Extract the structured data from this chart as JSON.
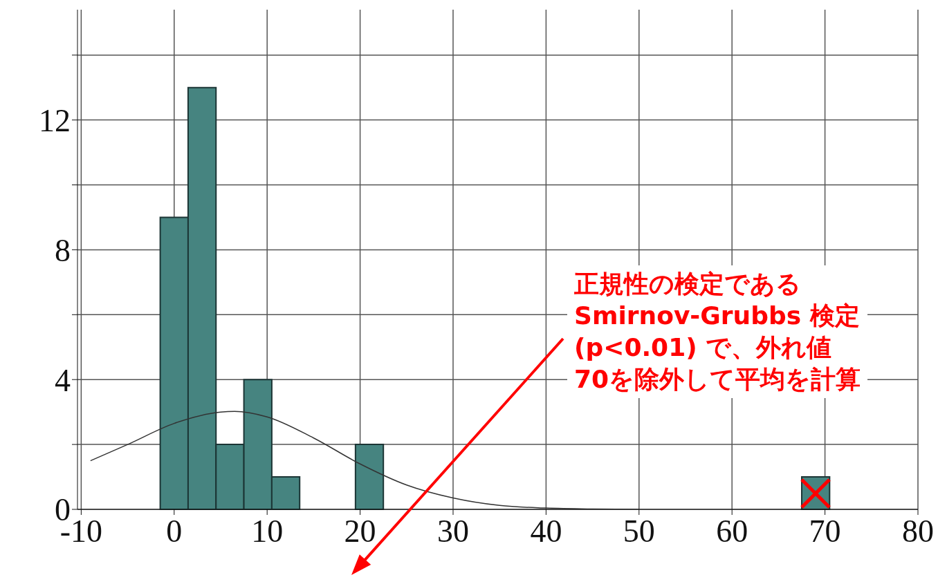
{
  "chart_data": {
    "type": "histogram",
    "bins": [
      -1.5,
      1.5,
      4.5,
      7.5,
      10.5,
      13.5,
      16.5,
      19.5,
      22.5,
      25.5,
      28.5,
      31.5,
      34.5,
      37.5,
      40.5,
      43.5,
      46.5,
      49.5,
      52.5,
      55.5,
      58.5,
      61.5,
      64.5,
      67.5,
      70.5
    ],
    "values": [
      9,
      13,
      2,
      4,
      1,
      0,
      0,
      2,
      0,
      0,
      0,
      0,
      0,
      0,
      0,
      0,
      0,
      0,
      0,
      0,
      0,
      0,
      0,
      1
    ],
    "color": "#468480",
    "series": [
      {
        "type": "line",
        "color": "#333333",
        "x": [
          -9,
          -5,
          0,
          5,
          6.5,
          10,
          15,
          20,
          25,
          30,
          35,
          40,
          45,
          50
        ],
        "values": [
          1.5,
          2.0,
          2.65,
          3.0,
          3.02,
          2.85,
          2.2,
          1.4,
          0.75,
          0.35,
          0.12,
          0.04,
          0.01,
          0
        ]
      }
    ],
    "xlim": [
      -10.4,
      80
    ],
    "xticks": [
      -10,
      0,
      10,
      20,
      30,
      40,
      50,
      60,
      70,
      80
    ],
    "ylim": [
      0,
      15.4
    ],
    "yticks": [
      0,
      {
        "value": 2,
        "label": null
      },
      4,
      {
        "value": 6,
        "label": null
      },
      8,
      {
        "value": 10,
        "label": null
      },
      12,
      {
        "value": 14,
        "label": null
      }
    ],
    "grid": true,
    "annotations": [
      "正規性の検定である\nSmirnov-Grubbs 検定\n(p<0.01) で、外れ値\n70を除外して平均を計算"
    ]
  }
}
